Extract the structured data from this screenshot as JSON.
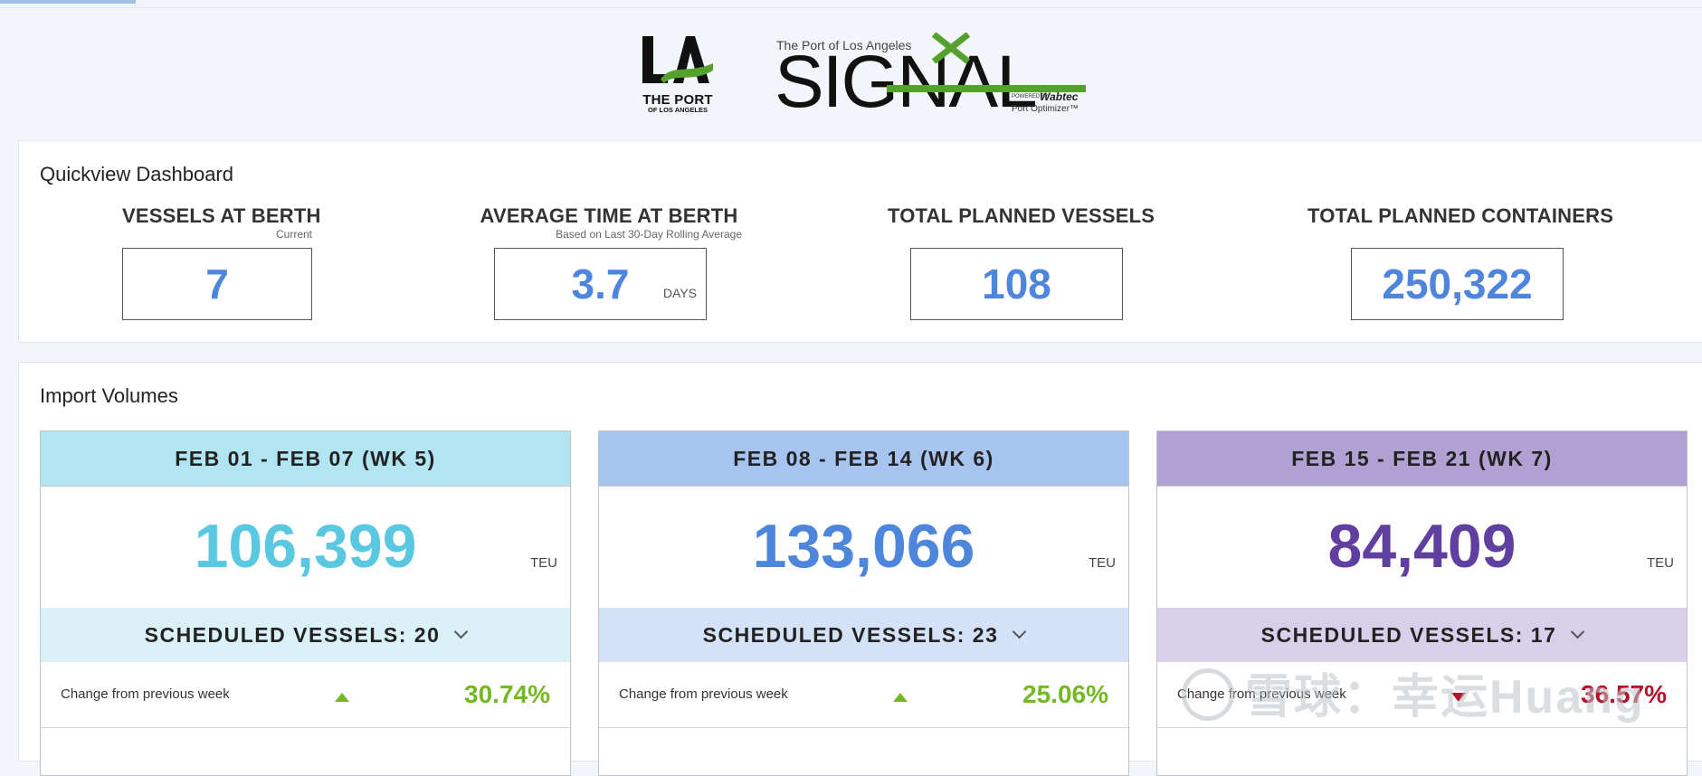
{
  "header": {
    "la_logo": {
      "mark": "LA",
      "line1": "THE PORT",
      "line2": "OF LOS ANGELES"
    },
    "signal_logo": {
      "tagline": "The Port of Los Angeles",
      "word": "SIGNAL",
      "powered_by": "POWERED BY",
      "brand": "Wabtec",
      "product": "Port Optimizer™"
    }
  },
  "quickview": {
    "title": "Quickview Dashboard",
    "metrics": [
      {
        "label": "VESSELS AT BERTH",
        "sub": "Current",
        "value": "7",
        "unit": ""
      },
      {
        "label": "AVERAGE TIME AT BERTH",
        "sub": "Based on Last 30-Day Rolling Average",
        "value": "3.7",
        "unit": "DAYS"
      },
      {
        "label": "TOTAL PLANNED VESSELS",
        "sub": "",
        "value": "108",
        "unit": ""
      },
      {
        "label": "TOTAL PLANNED CONTAINERS",
        "sub": "",
        "value": "250,322",
        "unit": ""
      }
    ]
  },
  "import_volumes": {
    "title": "Import Volumes",
    "weeks": [
      {
        "range": "FEB 01 - FEB 07 (WK 5)",
        "value": "106,399",
        "unit": "TEU",
        "scheduled": "SCHEDULED VESSELS: 20",
        "change_label": "Change from previous week",
        "change_value": "30.74%",
        "direction": "up",
        "colors": {
          "head": "#b1e5f1",
          "sched": "#d9f1f7",
          "value": "#5ac8e0"
        }
      },
      {
        "range": "FEB 08 - FEB 14 (WK 6)",
        "value": "133,066",
        "unit": "TEU",
        "scheduled": "SCHEDULED VESSELS: 23",
        "change_label": "Change from previous week",
        "change_value": "25.06%",
        "direction": "up",
        "colors": {
          "head": "#a6c4ef",
          "sched": "#d3e2f7",
          "value": "#4e86db"
        }
      },
      {
        "range": "FEB 15 - FEB 21 (WK 7)",
        "value": "84,409",
        "unit": "TEU",
        "scheduled": "SCHEDULED VESSELS: 17",
        "change_label": "Change from previous week",
        "change_value": "36.57%",
        "direction": "down",
        "colors": {
          "head": "#b1a1d3",
          "sched": "#d8d0ea",
          "value": "#5f3fa0"
        }
      }
    ],
    "colors": {
      "up": "#74b823",
      "down": "#b3122a"
    }
  },
  "watermark": {
    "text": "雪球：幸运Huang"
  }
}
